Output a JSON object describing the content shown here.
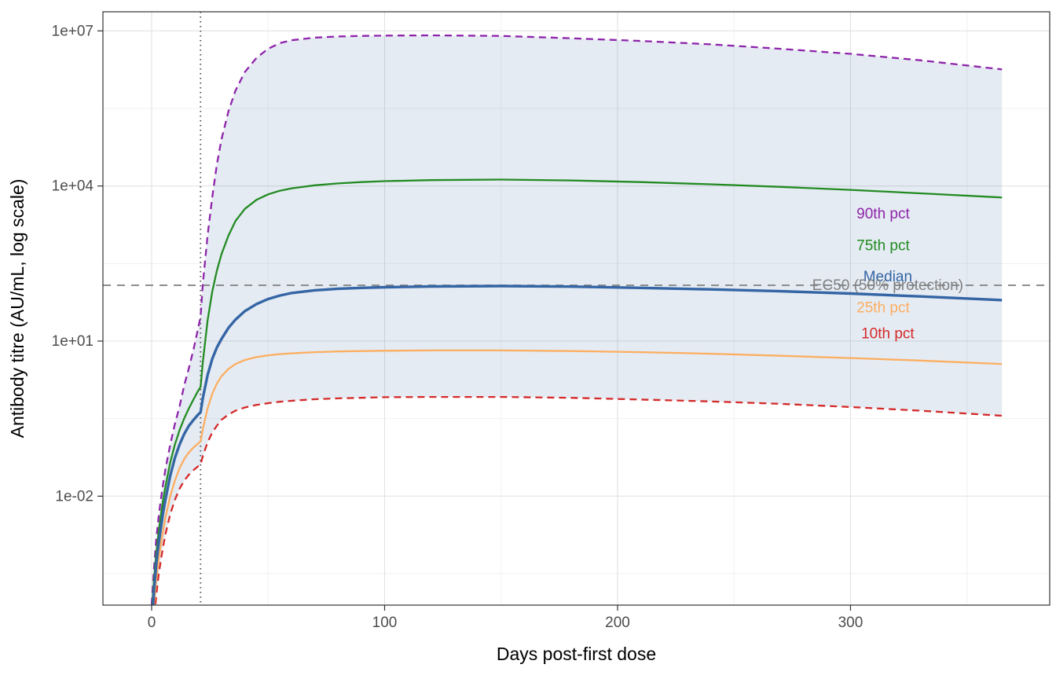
{
  "figure": {
    "background": "#FFFFFF",
    "x_axis": {
      "title": "Days post-first dose",
      "tick_labels": [
        "0",
        "100",
        "200",
        "300"
      ],
      "tick_values": [
        0,
        100,
        200,
        300
      ],
      "minor_tick_values": [
        50,
        150,
        250,
        350
      ]
    },
    "y_axis": {
      "title": "Antibody titre (AU/mL, log scale)",
      "scale": "log10",
      "tick_labels": [
        "1e+07",
        "1e+04",
        "1e+01",
        "1e-02"
      ],
      "tick_values": [
        10000000,
        10000,
        10,
        0.01
      ]
    }
  },
  "chart_data": {
    "type": "line",
    "x_label": "Days post-first dose",
    "y_label": "Antibody titre (AU/mL, log scale)",
    "x_days": [
      0,
      1,
      2,
      3,
      4,
      5,
      6,
      8,
      10,
      12,
      14,
      16,
      18,
      20,
      21,
      22,
      24,
      26,
      28,
      30,
      33,
      36,
      40,
      45,
      50,
      55,
      60,
      70,
      80,
      90,
      100,
      120,
      150,
      180,
      210,
      240,
      270,
      300,
      330,
      365
    ],
    "series": [
      {
        "name": "90th pct",
        "color": "#8E24AA",
        "style": "dashed",
        "width": 2.3,
        "values": [
          8e-05,
          0.0004,
          0.0015,
          0.004,
          0.009,
          0.018,
          0.035,
          0.1,
          0.25,
          0.55,
          1.4,
          3,
          7,
          18,
          30,
          130,
          1100,
          6000,
          26000,
          80000,
          280000,
          700000,
          1600000,
          3000000,
          4500000,
          5800000,
          6600000,
          7400000,
          7800000,
          8000000,
          8100000,
          8200000,
          8000000,
          7200000,
          6400000,
          5500000,
          4500000,
          3600000,
          2700000,
          1800000
        ]
      },
      {
        "name": "75th pct",
        "color": "#228B22",
        "style": "solid",
        "width": 2.3,
        "values": [
          5e-05,
          0.00025,
          0.0008,
          0.002,
          0.0045,
          0.009,
          0.016,
          0.045,
          0.1,
          0.19,
          0.32,
          0.5,
          0.75,
          1.1,
          1.3,
          4,
          25,
          90,
          230,
          480,
          1100,
          2100,
          3600,
          5400,
          6900,
          8100,
          9000,
          10300,
          11200,
          11900,
          12400,
          13000,
          13300,
          12800,
          11900,
          10800,
          9600,
          8400,
          7200,
          6000
        ]
      },
      {
        "name": "Median",
        "color": "#3465A4",
        "style": "solid",
        "width": 3.4,
        "values": [
          3e-05,
          0.00015,
          0.0005,
          0.0012,
          0.0025,
          0.005,
          0.009,
          0.025,
          0.055,
          0.1,
          0.16,
          0.23,
          0.3,
          0.38,
          0.42,
          0.8,
          2.2,
          4.5,
          7.5,
          11,
          18,
          26,
          38,
          52,
          65,
          76,
          85,
          96,
          103,
          107,
          110,
          114,
          116,
          113,
          107,
          100,
          92,
          83,
          73,
          62
        ]
      },
      {
        "name": "25th pct",
        "color": "#FCAE60",
        "style": "solid",
        "width": 2.3,
        "values": [
          2e-05,
          8e-05,
          0.00025,
          0.0006,
          0.0012,
          0.0022,
          0.004,
          0.01,
          0.02,
          0.035,
          0.052,
          0.07,
          0.088,
          0.105,
          0.115,
          0.2,
          0.5,
          0.95,
          1.5,
          2.1,
          2.9,
          3.6,
          4.3,
          4.9,
          5.3,
          5.6,
          5.8,
          6.1,
          6.3,
          6.4,
          6.5,
          6.6,
          6.6,
          6.4,
          6.1,
          5.7,
          5.2,
          4.7,
          4.2,
          3.6
        ]
      },
      {
        "name": "10th pct",
        "color": "#D42A2A",
        "style": "dashed",
        "width": 2.3,
        "values": [
          1e-05,
          4e-05,
          0.00012,
          0.0003,
          0.0006,
          0.0011,
          0.0019,
          0.0045,
          0.0085,
          0.014,
          0.02,
          0.026,
          0.032,
          0.038,
          0.041,
          0.06,
          0.11,
          0.17,
          0.23,
          0.3,
          0.38,
          0.45,
          0.52,
          0.58,
          0.63,
          0.67,
          0.7,
          0.75,
          0.78,
          0.8,
          0.82,
          0.83,
          0.83,
          0.8,
          0.74,
          0.68,
          0.61,
          0.53,
          0.45,
          0.36
        ]
      }
    ],
    "ribbon": {
      "upper_series": "90th pct",
      "lower_series": "10th pct",
      "fill": "#3465A4",
      "opacity": 0.13
    },
    "reference_lines": {
      "ec50_titre": 120,
      "ec50_color": "#7F7F7F",
      "ec50_style": "dashed",
      "second_dose_day": 21,
      "second_dose_color": "#4D4D4D",
      "second_dose_style": "dotted"
    },
    "annotations": [
      {
        "text": "90th pct",
        "color": "#8E24AA",
        "day": 314,
        "value": 2900
      },
      {
        "text": "75th pct",
        "color": "#228B22",
        "day": 314,
        "value": 700
      },
      {
        "text": "Median",
        "color": "#3465A4",
        "day": 316,
        "value": 175
      },
      {
        "text": "EC50 (50% protection)",
        "color": "#7F7F7F",
        "day": 316,
        "value": 120
      },
      {
        "text": "25th pct",
        "color": "#FCAE60",
        "day": 314,
        "value": 44
      },
      {
        "text": "10th pct",
        "color": "#D42A2A",
        "day": 316,
        "value": 14
      }
    ],
    "x_range": [
      0,
      365
    ],
    "y_range_log10": [
      -4.1,
      7.4
    ],
    "grid": true,
    "legend_position": "direct-labels-right"
  }
}
